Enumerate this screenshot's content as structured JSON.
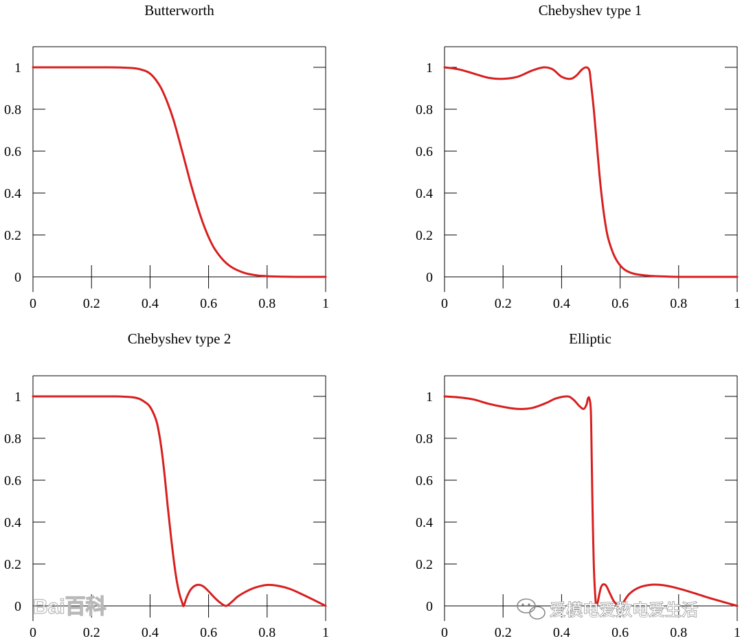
{
  "chart_data": [
    {
      "type": "line",
      "title": "Butterworth",
      "xlim": [
        0,
        1
      ],
      "ylim": [
        0,
        1.1
      ],
      "x_ticks": [
        "0",
        "0.2",
        "0.4",
        "0.6",
        "0.8",
        "1"
      ],
      "y_ticks": [
        "0",
        "0.2",
        "0.4",
        "0.6",
        "0.8",
        "1"
      ],
      "color": "#d81e1e",
      "series": [
        {
          "x": [
            0,
            0.1,
            0.2,
            0.25,
            0.3,
            0.35,
            0.38,
            0.4,
            0.42,
            0.44,
            0.46,
            0.48,
            0.5,
            0.52,
            0.54,
            0.56,
            0.58,
            0.6,
            0.62,
            0.65,
            0.68,
            0.72,
            0.76,
            0.8,
            0.85,
            0.9,
            1.0
          ],
          "y": [
            1,
            1,
            1,
            1,
            0.999,
            0.995,
            0.985,
            0.97,
            0.94,
            0.895,
            0.83,
            0.75,
            0.65,
            0.545,
            0.44,
            0.345,
            0.26,
            0.19,
            0.135,
            0.08,
            0.045,
            0.02,
            0.008,
            0.003,
            0.001,
            0,
            0
          ]
        }
      ]
    },
    {
      "type": "line",
      "title": "Chebyshev type 1",
      "xlim": [
        0,
        1
      ],
      "ylim": [
        0,
        1.1
      ],
      "x_ticks": [
        "0",
        "0.2",
        "0.4",
        "0.6",
        "0.8",
        "1"
      ],
      "y_ticks": [
        "0",
        "0.2",
        "0.4",
        "0.6",
        "0.8",
        "1"
      ],
      "color": "#d81e1e",
      "series": [
        {
          "x": [
            0,
            0.05,
            0.1,
            0.15,
            0.2,
            0.25,
            0.3,
            0.34,
            0.37,
            0.4,
            0.43,
            0.45,
            0.47,
            0.485,
            0.495,
            0.5,
            0.51,
            0.52,
            0.53,
            0.54,
            0.55,
            0.56,
            0.58,
            0.6,
            0.62,
            0.65,
            0.7,
            0.75,
            0.8,
            0.9,
            1.0
          ],
          "y": [
            1,
            0.99,
            0.97,
            0.95,
            0.945,
            0.955,
            0.985,
            1.0,
            0.99,
            0.955,
            0.945,
            0.96,
            0.99,
            1.0,
            0.985,
            0.93,
            0.8,
            0.64,
            0.48,
            0.35,
            0.25,
            0.18,
            0.1,
            0.055,
            0.03,
            0.014,
            0.005,
            0.002,
            0,
            0,
            0
          ]
        }
      ]
    },
    {
      "type": "line",
      "title": "Chebyshev type 2",
      "xlim": [
        0,
        1
      ],
      "ylim": [
        0,
        1.1
      ],
      "x_ticks": [
        "0",
        "0.2",
        "0.4",
        "0.6",
        "0.8",
        "1"
      ],
      "y_ticks": [
        "0",
        "0.2",
        "0.4",
        "0.6",
        "0.8",
        "1"
      ],
      "color": "#d81e1e",
      "series": [
        {
          "x": [
            0,
            0.1,
            0.2,
            0.28,
            0.33,
            0.36,
            0.38,
            0.4,
            0.42,
            0.43,
            0.44,
            0.45,
            0.46,
            0.47,
            0.48,
            0.49,
            0.5,
            0.51,
            0.515,
            0.525,
            0.54,
            0.56,
            0.58,
            0.6,
            0.62,
            0.64,
            0.66,
            0.68,
            0.7,
            0.73,
            0.76,
            0.8,
            0.84,
            0.88,
            0.92,
            0.96,
            1.0
          ],
          "y": [
            1,
            1,
            1,
            1,
            0.997,
            0.99,
            0.975,
            0.95,
            0.89,
            0.83,
            0.74,
            0.62,
            0.48,
            0.35,
            0.23,
            0.13,
            0.06,
            0.015,
            0,
            0.04,
            0.08,
            0.1,
            0.095,
            0.07,
            0.04,
            0.015,
            0,
            0.02,
            0.045,
            0.07,
            0.088,
            0.1,
            0.095,
            0.08,
            0.055,
            0.028,
            0
          ]
        }
      ]
    },
    {
      "type": "line",
      "title": "Elliptic",
      "xlim": [
        0,
        1
      ],
      "ylim": [
        0,
        1.1
      ],
      "x_ticks": [
        "0",
        "0.2",
        "0.4",
        "0.6",
        "0.8",
        "1"
      ],
      "y_ticks": [
        "0",
        "0.2",
        "0.4",
        "0.6",
        "0.8",
        "1"
      ],
      "color": "#d81e1e",
      "series": [
        {
          "x": [
            0,
            0.05,
            0.1,
            0.15,
            0.2,
            0.25,
            0.3,
            0.35,
            0.38,
            0.42,
            0.44,
            0.46,
            0.475,
            0.485,
            0.49,
            0.495,
            0.5,
            0.503,
            0.506,
            0.51,
            0.515,
            0.52,
            0.535,
            0.55,
            0.565,
            0.58,
            0.6,
            0.63,
            0.66,
            0.7,
            0.74,
            0.78,
            0.82,
            0.86,
            0.9,
            0.95,
            1.0
          ],
          "y": [
            1,
            0.995,
            0.985,
            0.965,
            0.95,
            0.94,
            0.945,
            0.97,
            0.99,
            1.0,
            0.985,
            0.955,
            0.94,
            0.96,
            0.99,
            0.99,
            0.93,
            0.7,
            0.45,
            0.2,
            0.05,
            0,
            0.09,
            0.1,
            0.06,
            0.02,
            0,
            0.055,
            0.085,
            0.1,
            0.1,
            0.09,
            0.075,
            0.058,
            0.04,
            0.02,
            0
          ]
        }
      ]
    }
  ],
  "watermarks": {
    "left": "Bai百科",
    "right": "爱模电爱数电爱生活",
    "right_icon": "wechat-icon"
  }
}
